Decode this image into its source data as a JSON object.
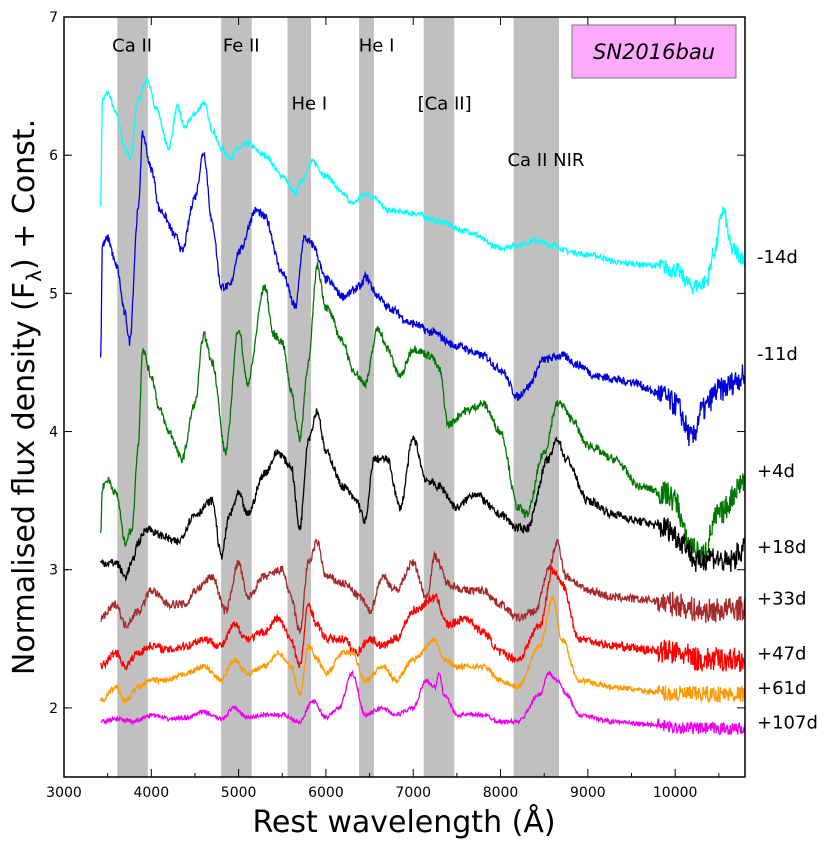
{
  "chart_data": {
    "type": "line",
    "title": "SN2016bau",
    "xlabel": "Rest wavelength (Å)",
    "ylabel_main": "Normalised flux density (F",
    "ylabel_sub": "λ",
    "ylabel_tail": ") + Const.",
    "xlim": [
      3000,
      10800
    ],
    "ylim": [
      1.5,
      7.0
    ],
    "xticks": [
      3000,
      4000,
      5000,
      6000,
      7000,
      8000,
      9000,
      10000
    ],
    "yticks": [
      2,
      3,
      4,
      5,
      6,
      7
    ],
    "grid": false,
    "label_box_color": "#ffaaff",
    "bands": [
      {
        "label": "Ca II",
        "x0": 3610,
        "x1": 3960,
        "label_x": 3780,
        "label_y": 6.75
      },
      {
        "label": "Fe II",
        "x0": 4800,
        "x1": 5150,
        "label_x": 5030,
        "label_y": 6.75
      },
      {
        "label": "He I",
        "x0": 5560,
        "x1": 5830,
        "label_x": 5810,
        "label_y": 6.33
      },
      {
        "label": "He I",
        "x0": 6380,
        "x1": 6550,
        "label_x": 6580,
        "label_y": 6.75
      },
      {
        "label": "[Ca II]",
        "x0": 7120,
        "x1": 7470,
        "label_x": 7360,
        "label_y": 6.33
      },
      {
        "label": "Ca II NIR",
        "x0": 8150,
        "x1": 8670,
        "label_x": 8520,
        "label_y": 5.92
      }
    ],
    "series": [
      {
        "name": "-14d",
        "color": "#00ffff",
        "label_y": 5.27,
        "noise": 0.02,
        "x": [
          3420,
          3440,
          3500,
          3600,
          3700,
          3760,
          3850,
          3950,
          4050,
          4200,
          4300,
          4380,
          4500,
          4600,
          4700,
          4800,
          4900,
          5000,
          5100,
          5300,
          5500,
          5650,
          5700,
          5850,
          6000,
          6200,
          6300,
          6450,
          6550,
          6700,
          7000,
          7300,
          7600,
          8000,
          8200,
          8400,
          8600,
          8800,
          9000,
          9400,
          9800,
          10000,
          10200,
          10350,
          10450,
          10550,
          10650,
          10800
        ],
        "y": [
          5.65,
          6.4,
          6.45,
          6.3,
          6.05,
          5.98,
          6.4,
          6.55,
          6.35,
          6.05,
          6.35,
          6.2,
          6.3,
          6.38,
          6.18,
          6.05,
          5.98,
          6.05,
          6.08,
          6.0,
          5.85,
          5.72,
          5.8,
          5.95,
          5.85,
          5.72,
          5.65,
          5.72,
          5.7,
          5.6,
          5.58,
          5.52,
          5.45,
          5.33,
          5.35,
          5.38,
          5.35,
          5.3,
          5.28,
          5.22,
          5.2,
          5.17,
          5.05,
          5.08,
          5.3,
          5.6,
          5.32,
          5.25
        ]
      },
      {
        "name": "-11d",
        "color": "#0000dd",
        "label_y": 4.57,
        "noise": 0.03,
        "x": [
          3420,
          3440,
          3500,
          3600,
          3700,
          3750,
          3850,
          3900,
          4000,
          4100,
          4300,
          4350,
          4500,
          4600,
          4700,
          4800,
          4900,
          5000,
          5200,
          5300,
          5500,
          5650,
          5750,
          5850,
          6000,
          6200,
          6400,
          6450,
          6600,
          6700,
          7000,
          7200,
          7500,
          7800,
          8000,
          8200,
          8300,
          8500,
          8700,
          8900,
          9100,
          9500,
          9800,
          10000,
          10200,
          10300,
          10500,
          10800
        ],
        "y": [
          4.55,
          5.35,
          5.4,
          5.2,
          4.85,
          4.65,
          5.6,
          6.15,
          5.9,
          5.6,
          5.4,
          5.3,
          5.7,
          6.02,
          5.5,
          5.05,
          5.05,
          5.3,
          5.6,
          5.55,
          5.15,
          4.9,
          5.4,
          5.35,
          5.1,
          4.98,
          5.05,
          5.12,
          4.98,
          4.9,
          4.78,
          4.72,
          4.62,
          4.55,
          4.45,
          4.25,
          4.32,
          4.52,
          4.55,
          4.48,
          4.4,
          4.36,
          4.28,
          4.2,
          3.95,
          4.15,
          4.3,
          4.4
        ]
      },
      {
        "name": "+4d",
        "color": "#007700",
        "label_y": 3.72,
        "noise": 0.03,
        "x": [
          3420,
          3440,
          3500,
          3600,
          3700,
          3780,
          3850,
          3900,
          4000,
          4100,
          4200,
          4350,
          4500,
          4600,
          4700,
          4850,
          5000,
          5100,
          5300,
          5400,
          5500,
          5600,
          5700,
          5800,
          5900,
          6000,
          6200,
          6300,
          6450,
          6600,
          6700,
          6850,
          7000,
          7200,
          7300,
          7400,
          7600,
          7800,
          8000,
          8200,
          8300,
          8500,
          8650,
          8700,
          8800,
          9000,
          9300,
          9600,
          9900,
          10000,
          10150,
          10300,
          10500,
          10800
        ],
        "y": [
          3.25,
          3.6,
          3.65,
          3.55,
          3.2,
          3.3,
          3.9,
          4.6,
          4.4,
          4.15,
          4.0,
          3.8,
          4.2,
          4.7,
          4.5,
          3.85,
          4.75,
          4.35,
          5.05,
          4.7,
          4.65,
          4.3,
          3.95,
          4.5,
          5.2,
          4.9,
          4.65,
          4.45,
          4.35,
          4.75,
          4.6,
          4.4,
          4.6,
          4.55,
          4.45,
          4.05,
          4.15,
          4.2,
          4.0,
          3.45,
          3.4,
          3.85,
          4.2,
          4.2,
          4.1,
          3.9,
          3.8,
          3.6,
          3.55,
          3.5,
          3.2,
          3.1,
          3.4,
          3.65
        ]
      },
      {
        "name": "+18d",
        "color": "#000000",
        "label_y": 3.17,
        "noise": 0.03,
        "x": [
          3420,
          3500,
          3600,
          3700,
          3780,
          3850,
          3950,
          4100,
          4300,
          4500,
          4700,
          4800,
          4900,
          5000,
          5100,
          5300,
          5450,
          5600,
          5700,
          5800,
          5900,
          6000,
          6200,
          6350,
          6450,
          6550,
          6700,
          6850,
          7000,
          7150,
          7300,
          7500,
          7700,
          8000,
          8200,
          8300,
          8550,
          8650,
          8750,
          9000,
          9300,
          9600,
          9900,
          10100,
          10250,
          10400,
          10600,
          10800
        ],
        "y": [
          3.05,
          3.05,
          3.05,
          2.95,
          3.05,
          3.2,
          3.3,
          3.25,
          3.2,
          3.4,
          3.5,
          3.1,
          3.4,
          3.55,
          3.4,
          3.7,
          3.85,
          3.75,
          3.3,
          3.95,
          4.15,
          3.85,
          3.6,
          3.5,
          3.35,
          3.8,
          3.8,
          3.45,
          3.95,
          3.65,
          3.6,
          3.45,
          3.55,
          3.4,
          3.3,
          3.3,
          3.8,
          3.95,
          3.8,
          3.5,
          3.4,
          3.35,
          3.3,
          3.2,
          3.05,
          3.1,
          3.05,
          3.15
        ]
      },
      {
        "name": "+33d",
        "color": "#a52a2a",
        "label_y": 2.8,
        "noise": 0.03,
        "x": [
          3420,
          3600,
          3700,
          3850,
          4000,
          4200,
          4400,
          4500,
          4700,
          4850,
          5000,
          5100,
          5300,
          5500,
          5600,
          5700,
          5800,
          5900,
          6000,
          6200,
          6400,
          6500,
          6650,
          6800,
          7000,
          7150,
          7250,
          7400,
          7600,
          7800,
          8000,
          8200,
          8400,
          8550,
          8650,
          8750,
          9000,
          9300,
          9700,
          10000,
          10300,
          10800
        ],
        "y": [
          2.65,
          2.75,
          2.6,
          2.7,
          2.85,
          2.75,
          2.75,
          2.85,
          2.95,
          2.7,
          3.05,
          2.8,
          2.95,
          3.0,
          2.8,
          2.55,
          3.05,
          3.2,
          2.95,
          2.9,
          2.8,
          2.7,
          2.95,
          2.85,
          3.05,
          2.8,
          3.1,
          2.9,
          2.85,
          2.85,
          2.75,
          2.65,
          2.7,
          3.0,
          3.2,
          2.95,
          2.85,
          2.8,
          2.78,
          2.75,
          2.7,
          2.72
        ]
      },
      {
        "name": "+47d",
        "color": "#ff0000",
        "label_y": 2.4,
        "noise": 0.03,
        "x": [
          3420,
          3600,
          3700,
          3850,
          4000,
          4200,
          4400,
          4600,
          4800,
          4950,
          5100,
          5300,
          5450,
          5600,
          5700,
          5800,
          5900,
          6000,
          6200,
          6350,
          6500,
          6650,
          6800,
          7000,
          7250,
          7400,
          7600,
          7800,
          8000,
          8200,
          8450,
          8600,
          8700,
          8900,
          9300,
          9700,
          10000,
          10300,
          10800
        ],
        "y": [
          2.3,
          2.4,
          2.3,
          2.4,
          2.45,
          2.42,
          2.45,
          2.5,
          2.45,
          2.6,
          2.5,
          2.55,
          2.65,
          2.5,
          2.3,
          2.75,
          2.6,
          2.5,
          2.5,
          2.4,
          2.5,
          2.45,
          2.5,
          2.7,
          2.8,
          2.6,
          2.65,
          2.55,
          2.4,
          2.35,
          2.6,
          3.0,
          2.9,
          2.5,
          2.45,
          2.42,
          2.4,
          2.35,
          2.35
        ]
      },
      {
        "name": "+61d",
        "color": "#ff9900",
        "label_y": 2.15,
        "noise": 0.02,
        "x": [
          3420,
          3600,
          3700,
          3850,
          4000,
          4200,
          4400,
          4600,
          4800,
          4950,
          5100,
          5300,
          5450,
          5600,
          5700,
          5800,
          5900,
          6000,
          6200,
          6300,
          6450,
          6650,
          6800,
          7000,
          7250,
          7350,
          7500,
          7800,
          8000,
          8200,
          8450,
          8600,
          8700,
          8900,
          9300,
          9700,
          10000,
          10300,
          10800
        ],
        "y": [
          2.05,
          2.15,
          2.05,
          2.15,
          2.2,
          2.2,
          2.25,
          2.3,
          2.2,
          2.35,
          2.25,
          2.3,
          2.4,
          2.3,
          2.1,
          2.45,
          2.35,
          2.25,
          2.4,
          2.4,
          2.2,
          2.3,
          2.2,
          2.35,
          2.5,
          2.35,
          2.3,
          2.3,
          2.2,
          2.15,
          2.45,
          2.8,
          2.5,
          2.2,
          2.15,
          2.12,
          2.1,
          2.1,
          2.1
        ]
      },
      {
        "name": "+107d",
        "color": "#ee00ee",
        "label_y": 1.9,
        "noise": 0.015,
        "x": [
          3420,
          3600,
          3800,
          4000,
          4200,
          4400,
          4600,
          4800,
          4950,
          5100,
          5300,
          5500,
          5700,
          5850,
          6000,
          6150,
          6300,
          6450,
          6650,
          6800,
          7000,
          7150,
          7250,
          7300,
          7350,
          7500,
          7800,
          8000,
          8200,
          8450,
          8550,
          8650,
          8750,
          8900,
          9300,
          9700,
          10000,
          10300,
          10800
        ],
        "y": [
          1.9,
          1.92,
          1.9,
          1.95,
          1.92,
          1.93,
          1.97,
          1.92,
          2.0,
          1.93,
          1.95,
          1.95,
          1.9,
          2.05,
          1.93,
          2.0,
          2.25,
          1.95,
          2.0,
          1.95,
          2.0,
          2.2,
          2.15,
          2.25,
          2.1,
          1.95,
          1.95,
          1.9,
          1.9,
          2.1,
          2.25,
          2.2,
          2.1,
          1.95,
          1.9,
          1.88,
          1.86,
          1.85,
          1.85
        ]
      }
    ]
  }
}
